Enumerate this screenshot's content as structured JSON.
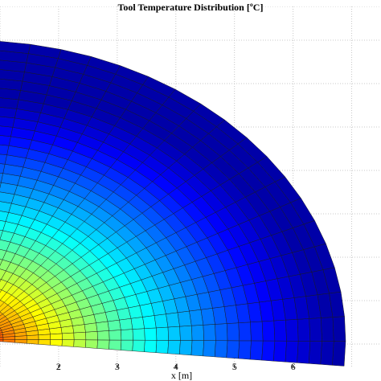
{
  "chart_data": {
    "type": "heatmap",
    "title": "Tool Temperature Distribution [ºC]",
    "xlabel": "x [m]",
    "ylabel": "",
    "x_ticks": [
      "2",
      "3",
      "4",
      "5",
      "6"
    ],
    "xlim": [
      1.0,
      7.5
    ],
    "grid": true,
    "colormap": "jet",
    "legend": "none",
    "mesh": {
      "shape": "quarter-ellipse fan",
      "origin": "bottom-left",
      "radial_divisions": 32,
      "angular_divisions": 20,
      "semi_axis_x": 6.6,
      "hottest_color": "#ff3a00",
      "coolest_color": "#0a18c8"
    }
  }
}
